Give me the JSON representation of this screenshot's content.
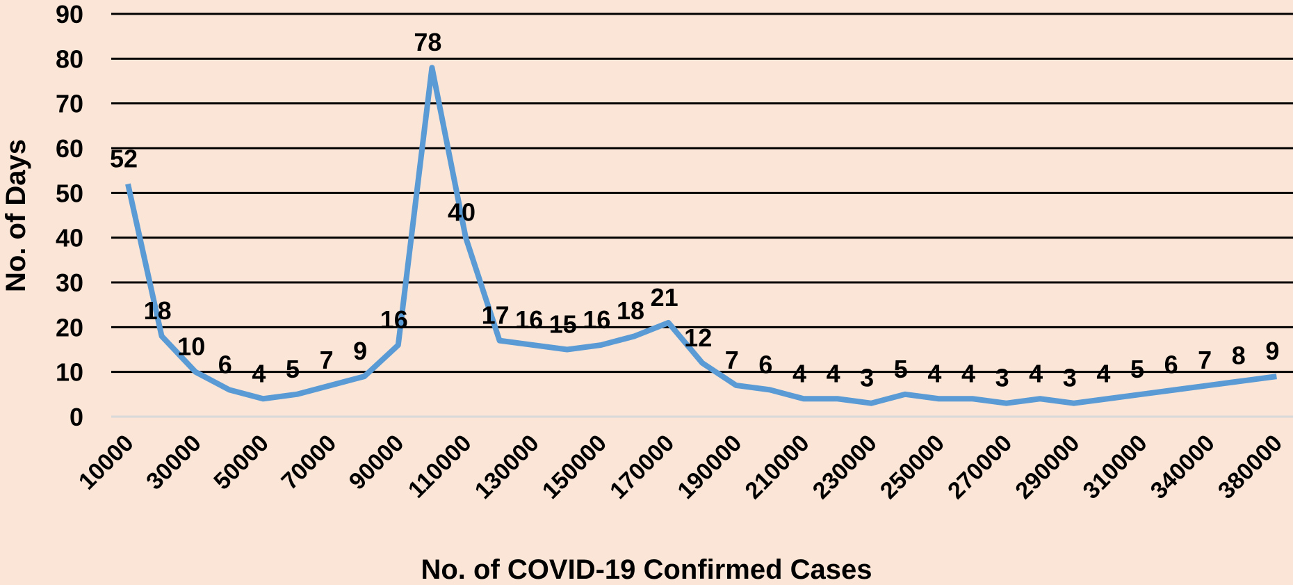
{
  "chart_data": {
    "type": "line",
    "x_label": "No. of COVID-19 Confirmed Cases",
    "y_label": "No. of Days",
    "categories": [
      "10000",
      null,
      "30000",
      null,
      "50000",
      null,
      "70000",
      null,
      "90000",
      null,
      "110000",
      null,
      "130000",
      null,
      "150000",
      null,
      "170000",
      null,
      "190000",
      null,
      "210000",
      null,
      "230000",
      null,
      "250000",
      null,
      "270000",
      null,
      "290000",
      null,
      "310000",
      null,
      "340000",
      null,
      "380000"
    ],
    "series": [
      {
        "name": "No. of Days",
        "color": "#5b9bd5",
        "values": [
          52,
          18,
          10,
          6,
          4,
          5,
          7,
          9,
          16,
          78,
          40,
          17,
          16,
          15,
          16,
          18,
          21,
          12,
          7,
          6,
          4,
          4,
          3,
          5,
          4,
          4,
          3,
          4,
          3,
          4,
          5,
          6,
          7,
          8,
          9
        ]
      }
    ],
    "ylim": [
      0,
      90
    ],
    "yticks": [
      0,
      10,
      20,
      30,
      40,
      50,
      60,
      70,
      80,
      90
    ],
    "grid": true
  }
}
